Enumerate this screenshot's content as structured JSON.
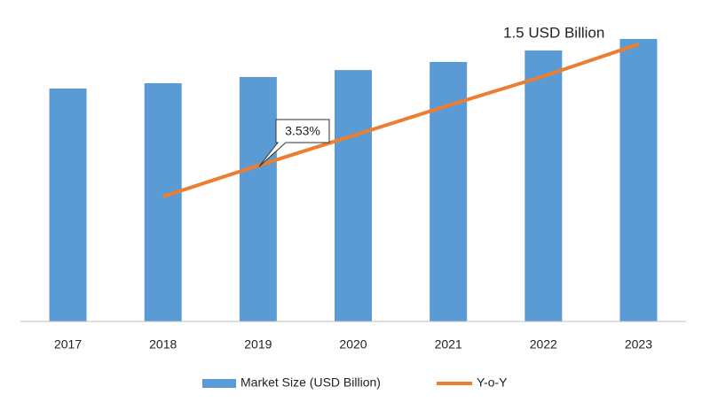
{
  "chart_data": {
    "type": "bar",
    "categories": [
      "2017",
      "2018",
      "2019",
      "2020",
      "2021",
      "2022",
      "2023"
    ],
    "series": [
      {
        "name": "Market Size (USD Billion)",
        "type": "bar",
        "color": "#5b9bd5",
        "values": [
          1.237,
          1.265,
          1.298,
          1.335,
          1.378,
          1.439,
          1.5
        ]
      },
      {
        "name": "Y-o-Y",
        "type": "line",
        "color": "#ed7d31",
        "values": [
          null,
          0.663,
          0.828,
          0.987,
          1.147,
          1.302,
          1.472
        ]
      }
    ],
    "ylim": [
      0,
      1.5
    ],
    "annotations": [
      "3.53%",
      "1.5 USD Billion"
    ]
  }
}
